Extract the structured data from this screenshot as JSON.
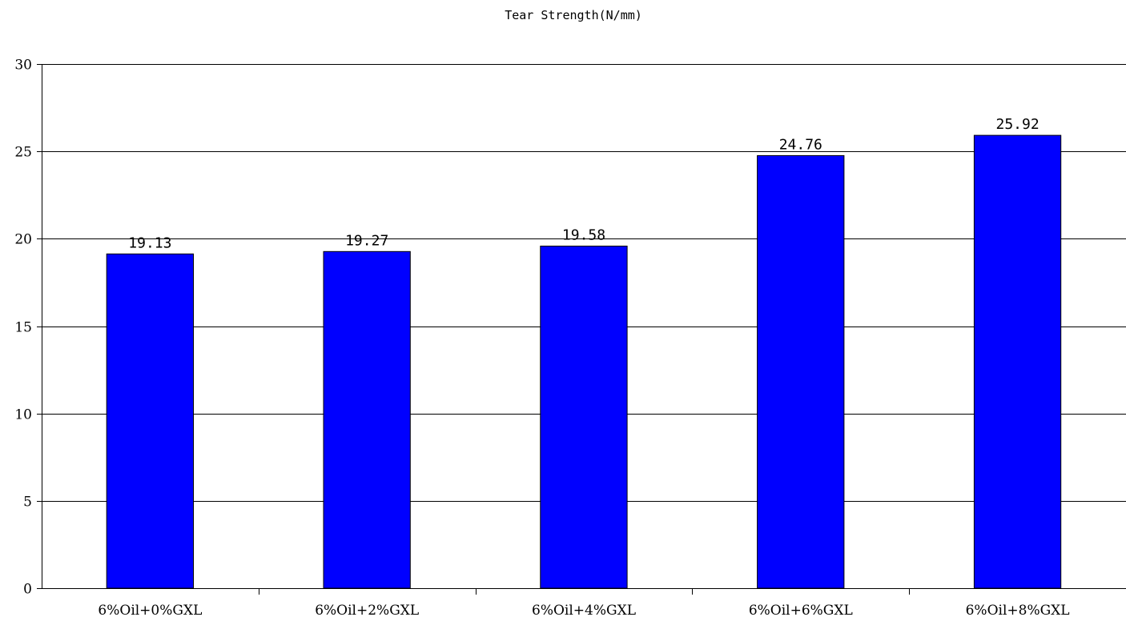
{
  "chart_data": {
    "type": "bar",
    "title": "Tear Strength(N/mm)",
    "xlabel": "",
    "ylabel": "",
    "categories": [
      "6%Oil+0%GXL",
      "6%Oil+2%GXL",
      "6%Oil+4%GXL",
      "6%Oil+6%GXL",
      "6%Oil+8%GXL"
    ],
    "values": [
      19.13,
      19.27,
      19.58,
      24.76,
      25.92
    ],
    "data_labels": [
      "19.13",
      "19.27",
      "19.58",
      "24.76",
      "25.92"
    ],
    "ylim": [
      0,
      30
    ],
    "yticks": [
      0,
      5,
      10,
      15,
      20,
      25,
      30
    ],
    "grid": true,
    "legend": "none",
    "bar_color": "#0000FF"
  }
}
